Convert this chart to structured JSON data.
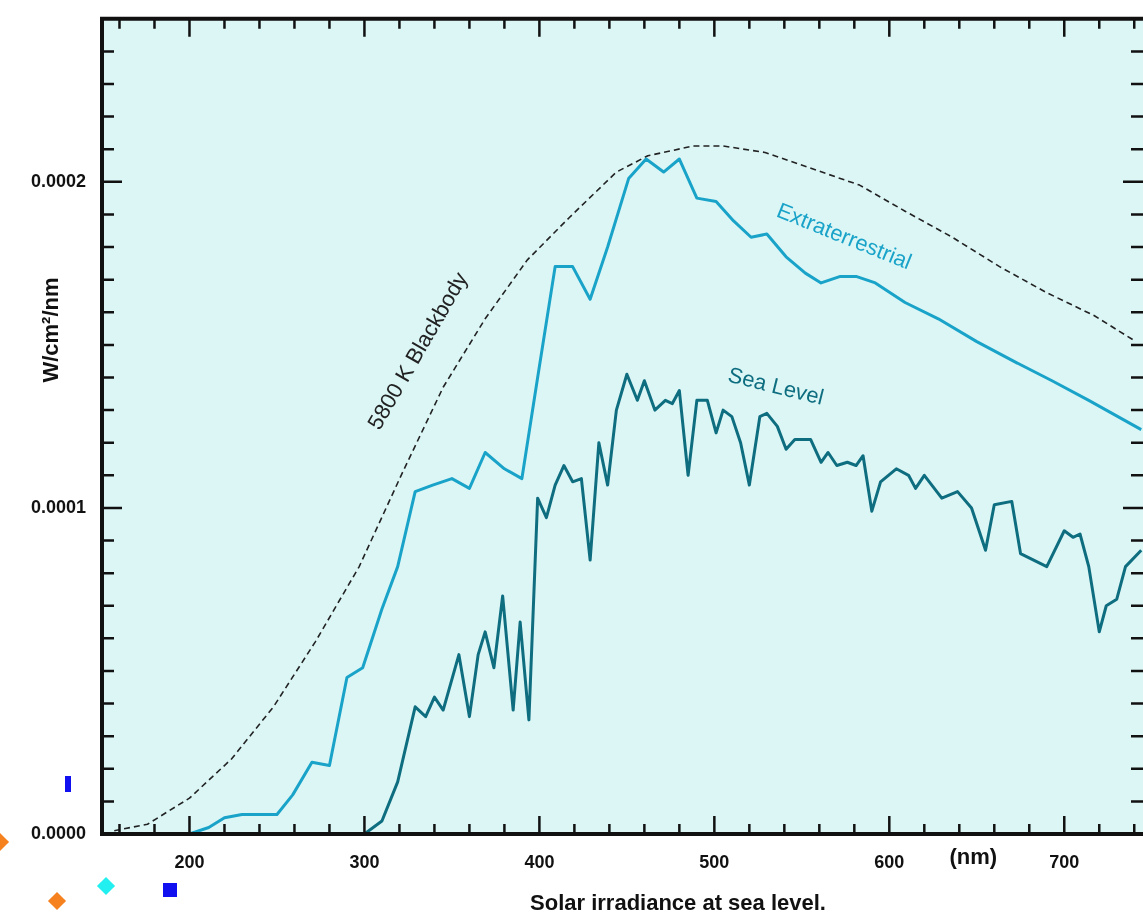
{
  "chart_data": {
    "type": "line",
    "xlabel": "Solar irradiance at sea level.",
    "ylabel": "W/cm²/nm",
    "annotations": [
      "(nm)"
    ],
    "xlim": [
      150,
      745
    ],
    "ylim": [
      0,
      0.00025
    ],
    "xticks": [
      {
        "value": 160,
        "label": null
      },
      {
        "value": 180,
        "label": null
      },
      200,
      {
        "value": 220,
        "label": null
      },
      {
        "value": 240,
        "label": null
      },
      {
        "value": 260,
        "label": null
      },
      {
        "value": 280,
        "label": null
      },
      300,
      {
        "value": 320,
        "label": null
      },
      {
        "value": 340,
        "label": null
      },
      {
        "value": 360,
        "label": null
      },
      {
        "value": 380,
        "label": null
      },
      400,
      {
        "value": 420,
        "label": null
      },
      {
        "value": 440,
        "label": null
      },
      {
        "value": 460,
        "label": null
      },
      {
        "value": 480,
        "label": null
      },
      500,
      {
        "value": 520,
        "label": null
      },
      {
        "value": 540,
        "label": null
      },
      {
        "value": 560,
        "label": null
      },
      {
        "value": 580,
        "label": null
      },
      600,
      {
        "value": 620,
        "label": null
      },
      {
        "value": 640,
        "label": null
      },
      {
        "value": 660,
        "label": null
      },
      {
        "value": 680,
        "label": null
      },
      700,
      {
        "value": 720,
        "label": null
      },
      {
        "value": 740,
        "label": null
      }
    ],
    "yticks": [
      {
        "value": 0,
        "label": "0.0000"
      },
      {
        "value": 1e-05,
        "label": null
      },
      {
        "value": 2e-05,
        "label": null
      },
      {
        "value": 3e-05,
        "label": null
      },
      {
        "value": 4e-05,
        "label": null
      },
      {
        "value": 5e-05,
        "label": null
      },
      {
        "value": 6e-05,
        "label": null
      },
      {
        "value": 7e-05,
        "label": null
      },
      {
        "value": 8e-05,
        "label": null
      },
      {
        "value": 9e-05,
        "label": null
      },
      {
        "value": 0.0001,
        "label": "0.0001"
      },
      {
        "value": 0.00011,
        "label": null
      },
      {
        "value": 0.00012,
        "label": null
      },
      {
        "value": 0.00013,
        "label": null
      },
      {
        "value": 0.00014,
        "label": null
      },
      {
        "value": 0.00015,
        "label": null
      },
      {
        "value": 0.00016,
        "label": null
      },
      {
        "value": 0.00017,
        "label": null
      },
      {
        "value": 0.00018,
        "label": null
      },
      {
        "value": 0.00019,
        "label": null
      },
      {
        "value": 0.0002,
        "label": "0.0002"
      },
      {
        "value": 0.00021,
        "label": null
      },
      {
        "value": 0.00022,
        "label": null
      },
      {
        "value": 0.00023,
        "label": null
      },
      {
        "value": 0.00024,
        "label": null
      },
      {
        "value": 0.00025,
        "label": null
      }
    ],
    "marker": "none",
    "series": [
      {
        "name": "Extraterrestrial",
        "color": "#1aa3c8",
        "line_style": "solid",
        "x": [
          200,
          211,
          220,
          230,
          240,
          250,
          259,
          270,
          280,
          290,
          299,
          310,
          319,
          329,
          339,
          350,
          360,
          369,
          380,
          390,
          399,
          409,
          419,
          429,
          439,
          451,
          461,
          471,
          480,
          490,
          501,
          511,
          521,
          530,
          541,
          552,
          561,
          572,
          581,
          592,
          609,
          628,
          650,
          671,
          693,
          714,
          744
        ],
        "values": [
          0,
          2e-06,
          5e-06,
          6e-06,
          6e-06,
          6e-06,
          1.2e-05,
          2.2e-05,
          2.1e-05,
          4.8e-05,
          5.1e-05,
          6.9e-05,
          8.2e-05,
          0.000105,
          0.000107,
          0.000109,
          0.000106,
          0.000117,
          0.000112,
          0.000109,
          0.00014,
          0.000174,
          0.000174,
          0.000164,
          0.00018,
          0.000201,
          0.000207,
          0.000203,
          0.000207,
          0.000195,
          0.000194,
          0.000188,
          0.000183,
          0.000184,
          0.000177,
          0.000172,
          0.000169,
          0.000171,
          0.000171,
          0.000169,
          0.000163,
          0.000158,
          0.000151,
          0.000145,
          0.000139,
          0.000133,
          0.000124
        ]
      },
      {
        "name": "Sea Level",
        "color": "#0e6e80",
        "line_style": "solid",
        "x": [
          300,
          310,
          319,
          329,
          335,
          340,
          345,
          354,
          360,
          365,
          369,
          374,
          379,
          385,
          389,
          394,
          399,
          404,
          409,
          414,
          419,
          424,
          429,
          434,
          439,
          444,
          450,
          456,
          460,
          466,
          472,
          476,
          480,
          485,
          490,
          496,
          501,
          505,
          510,
          515,
          520,
          526,
          530,
          536,
          541,
          546,
          555,
          561,
          565,
          570,
          576,
          581,
          585,
          590,
          595,
          604,
          611,
          615,
          620,
          630,
          639,
          647,
          655,
          660,
          670,
          675,
          690,
          700,
          705,
          709,
          714,
          720,
          724,
          730,
          735,
          744
        ],
        "values": [
          0,
          4e-06,
          1.6e-05,
          3.9e-05,
          3.6e-05,
          4.2e-05,
          3.8e-05,
          5.5e-05,
          3.6e-05,
          5.5e-05,
          6.2e-05,
          5.1e-05,
          7.3e-05,
          3.8e-05,
          6.5e-05,
          3.5e-05,
          0.000103,
          9.7e-05,
          0.000107,
          0.000113,
          0.000108,
          0.000109,
          8.4e-05,
          0.00012,
          0.000107,
          0.00013,
          0.000141,
          0.000133,
          0.000139,
          0.00013,
          0.000133,
          0.000132,
          0.000136,
          0.00011,
          0.000133,
          0.000133,
          0.000123,
          0.00013,
          0.000128,
          0.00012,
          0.000107,
          0.000128,
          0.000129,
          0.000125,
          0.000118,
          0.000121,
          0.000121,
          0.000114,
          0.000117,
          0.000113,
          0.000114,
          0.000113,
          0.000116,
          9.9e-05,
          0.000108,
          0.000112,
          0.00011,
          0.000106,
          0.00011,
          0.000103,
          0.000105,
          0.0001,
          8.7e-05,
          0.000101,
          0.000102,
          8.6e-05,
          8.2e-05,
          9.3e-05,
          9.1e-05,
          9.2e-05,
          8.2e-05,
          6.2e-05,
          7e-05,
          7.2e-05,
          8.2e-05,
          8.7e-05
        ]
      },
      {
        "name": "5800 K Blackbody",
        "color": "#222222",
        "line_style": "dashed",
        "x": [
          157,
          176,
          200,
          224,
          248,
          272,
          297,
          321,
          345,
          369,
          393,
          417,
          444,
          462,
          488,
          505,
          529,
          556,
          583,
          609,
          636,
          663,
          690,
          717,
          741
        ],
        "values": [
          1e-06,
          3e-06,
          1.1e-05,
          2.3e-05,
          3.9e-05,
          5.9e-05,
          8.2e-05,
          0.00011,
          0.000137,
          0.000158,
          0.000176,
          0.000189,
          0.000203,
          0.000208,
          0.000211,
          0.000211,
          0.000209,
          0.000204,
          0.000199,
          0.000191,
          0.000183,
          0.000174,
          0.000166,
          0.000159,
          0.000151
        ]
      }
    ]
  }
}
